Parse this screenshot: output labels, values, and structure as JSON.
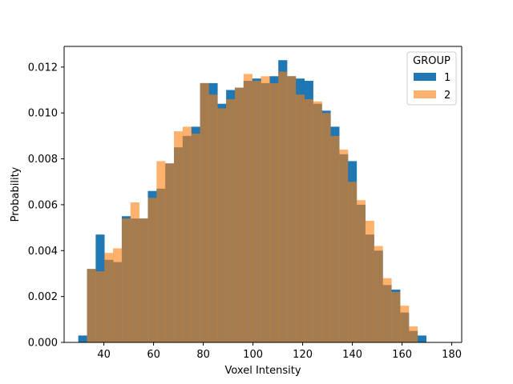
{
  "chart_data": {
    "type": "bar",
    "title": "",
    "xlabel": "Voxel Intensity",
    "ylabel": "Probability",
    "xlim": [
      24,
      184
    ],
    "ylim": [
      0,
      0.0129
    ],
    "bin_width": 3.5,
    "x_ticks": [
      40,
      60,
      80,
      100,
      120,
      140,
      160,
      180
    ],
    "y_ticks": [
      0.0,
      0.002,
      0.004,
      0.006,
      0.008,
      0.01,
      0.012
    ],
    "y_tick_labels": [
      "0.000",
      "0.002",
      "0.004",
      "0.006",
      "0.008",
      "0.010",
      "0.012"
    ],
    "grid": false,
    "legend": {
      "title": "GROUP",
      "placement": "top-right"
    },
    "series": [
      {
        "name": "1",
        "color": "#1f77b4",
        "opacity": 1.0,
        "bins": [
          [
            29.7,
            0.0003
          ],
          [
            33.2,
            0.0032
          ],
          [
            36.7,
            0.0047
          ],
          [
            40.2,
            0.0036
          ],
          [
            43.7,
            0.0035
          ],
          [
            47.2,
            0.0055
          ],
          [
            50.7,
            0.0054
          ],
          [
            54.2,
            0.0054
          ],
          [
            57.7,
            0.0066
          ],
          [
            61.2,
            0.0067
          ],
          [
            64.7,
            0.0078
          ],
          [
            68.2,
            0.0085
          ],
          [
            71.7,
            0.009
          ],
          [
            75.2,
            0.0094
          ],
          [
            78.7,
            0.0113
          ],
          [
            82.2,
            0.0113
          ],
          [
            85.7,
            0.0104
          ],
          [
            89.2,
            0.011
          ],
          [
            92.7,
            0.0111
          ],
          [
            96.2,
            0.0114
          ],
          [
            99.7,
            0.0115
          ],
          [
            103.2,
            0.0113
          ],
          [
            106.7,
            0.0116
          ],
          [
            110.2,
            0.0123
          ],
          [
            113.7,
            0.0116
          ],
          [
            117.2,
            0.0115
          ],
          [
            120.7,
            0.0114
          ],
          [
            124.2,
            0.0104
          ],
          [
            127.7,
            0.0101
          ],
          [
            131.2,
            0.0094
          ],
          [
            134.7,
            0.0082
          ],
          [
            138.2,
            0.0079
          ],
          [
            141.7,
            0.006
          ],
          [
            145.2,
            0.0047
          ],
          [
            148.7,
            0.004
          ],
          [
            152.2,
            0.0025
          ],
          [
            155.7,
            0.0023
          ],
          [
            159.2,
            0.0013
          ],
          [
            162.7,
            0.0005
          ],
          [
            166.2,
            0.0003
          ]
        ]
      },
      {
        "name": "2",
        "color": "#ff7f0e",
        "opacity": 0.6,
        "bins": [
          [
            33.2,
            0.0032
          ],
          [
            36.7,
            0.0031
          ],
          [
            40.2,
            0.0039
          ],
          [
            43.7,
            0.0041
          ],
          [
            47.2,
            0.0054
          ],
          [
            50.7,
            0.0061
          ],
          [
            54.2,
            0.0054
          ],
          [
            57.7,
            0.0063
          ],
          [
            61.2,
            0.0079
          ],
          [
            64.7,
            0.0078
          ],
          [
            68.2,
            0.0092
          ],
          [
            71.7,
            0.0094
          ],
          [
            75.2,
            0.0091
          ],
          [
            78.7,
            0.0113
          ],
          [
            82.2,
            0.0108
          ],
          [
            85.7,
            0.0102
          ],
          [
            89.2,
            0.0106
          ],
          [
            92.7,
            0.0111
          ],
          [
            96.2,
            0.0117
          ],
          [
            99.7,
            0.0114
          ],
          [
            103.2,
            0.0116
          ],
          [
            106.7,
            0.0113
          ],
          [
            110.2,
            0.0118
          ],
          [
            113.7,
            0.0116
          ],
          [
            117.2,
            0.0108
          ],
          [
            120.7,
            0.0106
          ],
          [
            124.2,
            0.0105
          ],
          [
            127.7,
            0.01
          ],
          [
            131.2,
            0.009
          ],
          [
            134.7,
            0.0084
          ],
          [
            138.2,
            0.007
          ],
          [
            141.7,
            0.0062
          ],
          [
            145.2,
            0.0053
          ],
          [
            148.7,
            0.0042
          ],
          [
            152.2,
            0.0028
          ],
          [
            155.7,
            0.0022
          ],
          [
            159.2,
            0.0016
          ],
          [
            162.7,
            0.0007
          ],
          [
            166.2,
            0.0
          ]
        ]
      }
    ]
  }
}
